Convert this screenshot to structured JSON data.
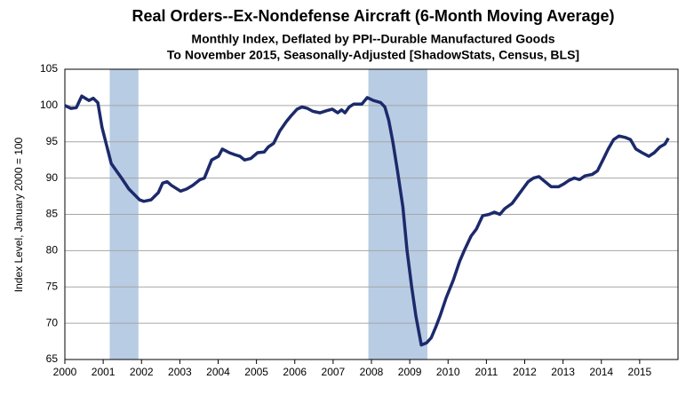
{
  "chart_data": {
    "type": "line",
    "title": "Real Orders--Ex-Nondefense Aircraft (6-Month Moving Average)",
    "subtitle": [
      "Monthly Index, Deflated by PPI--Durable Manufactured Goods",
      "To November 2015, Seasonally-Adjusted [ShadowStats, Census, BLS]"
    ],
    "y_label": "Index Level, January 2000 = 100",
    "x": [
      2000.0,
      2000.16,
      2000.3,
      2000.44,
      2000.63,
      2000.74,
      2000.86,
      2000.97,
      2001.21,
      2001.48,
      2001.67,
      2001.95,
      2002.06,
      2002.25,
      2002.44,
      2002.55,
      2002.67,
      2002.78,
      2003.02,
      2003.18,
      2003.34,
      2003.53,
      2003.64,
      2003.83,
      2004.01,
      2004.11,
      2004.29,
      2004.45,
      2004.57,
      2004.69,
      2004.85,
      2005.03,
      2005.2,
      2005.31,
      2005.45,
      2005.61,
      2005.78,
      2005.89,
      2006.06,
      2006.19,
      2006.33,
      2006.47,
      2006.66,
      2006.84,
      2006.98,
      2007.12,
      2007.22,
      2007.31,
      2007.42,
      2007.54,
      2007.75,
      2007.89,
      2008.05,
      2008.24,
      2008.35,
      2008.45,
      2008.56,
      2008.68,
      2008.82,
      2008.93,
      2009.05,
      2009.16,
      2009.3,
      2009.44,
      2009.56,
      2009.68,
      2009.79,
      2009.95,
      2010.14,
      2010.3,
      2010.42,
      2010.6,
      2010.74,
      2010.9,
      2011.07,
      2011.21,
      2011.35,
      2011.48,
      2011.67,
      2011.81,
      2011.95,
      2012.09,
      2012.23,
      2012.37,
      2012.53,
      2012.69,
      2012.88,
      2013.02,
      2013.16,
      2013.29,
      2013.43,
      2013.57,
      2013.76,
      2013.9,
      2014.04,
      2014.18,
      2014.32,
      2014.46,
      2014.62,
      2014.76,
      2014.9,
      2015.06,
      2015.24,
      2015.38,
      2015.53,
      2015.66,
      2015.75
    ],
    "series": [
      {
        "color": "#1c2a6b",
        "values": [
          100,
          99.6,
          99.7,
          101.3,
          100.7,
          101,
          100.4,
          97,
          92,
          90,
          88.5,
          87,
          86.8,
          87,
          88,
          89.3,
          89.5,
          89,
          88.2,
          88.5,
          89,
          89.8,
          90,
          92.5,
          93,
          94,
          93.5,
          93.2,
          93,
          92.5,
          92.7,
          93.5,
          93.6,
          94.3,
          94.8,
          96.5,
          97.8,
          98.5,
          99.5,
          99.8,
          99.6,
          99.2,
          99,
          99.3,
          99.5,
          99,
          99.4,
          99,
          99.8,
          100.2,
          100.2,
          101.1,
          100.7,
          100.4,
          99.8,
          98,
          95,
          91,
          86,
          80,
          75,
          71,
          67,
          67.3,
          68,
          69.5,
          71,
          73.5,
          76,
          78.5,
          80,
          82,
          83,
          84.8,
          85,
          85.3,
          85,
          85.8,
          86.5,
          87.5,
          88.5,
          89.5,
          90,
          90.2,
          89.5,
          88.8,
          88.8,
          89.2,
          89.7,
          90,
          89.8,
          90.3,
          90.5,
          91,
          92.5,
          94,
          95.3,
          95.8,
          95.6,
          95.3,
          94,
          93.5,
          93,
          93.5,
          94.3,
          94.7,
          95.5
        ]
      }
    ],
    "shaded_regions": [
      [
        2001.17,
        2001.92
      ],
      [
        2007.92,
        2009.46
      ]
    ],
    "shade_color": "#b8cce4",
    "xlim": [
      2000,
      2016
    ],
    "xticks": [
      2000,
      2001,
      2002,
      2003,
      2004,
      2005,
      2006,
      2007,
      2008,
      2009,
      2010,
      2011,
      2012,
      2013,
      2014,
      2015
    ],
    "ylim": [
      65,
      105
    ],
    "yticks": [
      65,
      70,
      75,
      80,
      85,
      90,
      95,
      100,
      105
    ],
    "grid": true
  }
}
